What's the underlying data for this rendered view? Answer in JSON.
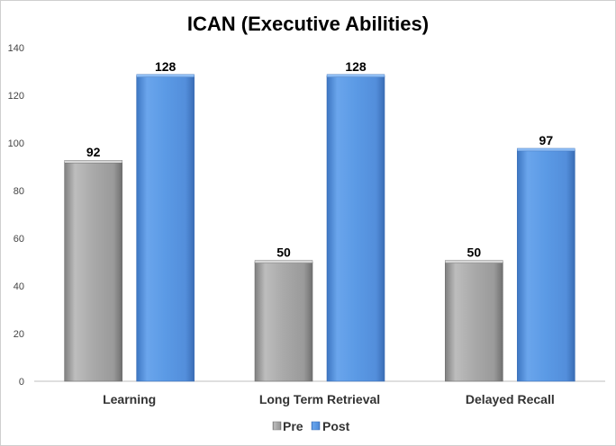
{
  "chart_data": {
    "type": "bar",
    "title": "ICAN (Executive Abilities)",
    "categories": [
      "Learning",
      "Long Term Retrieval",
      "Delayed Recall"
    ],
    "series": [
      {
        "name": "Pre",
        "values": [
          92,
          50,
          50
        ],
        "color": "#a6a6a6"
      },
      {
        "name": "Post",
        "values": [
          128,
          128,
          97
        ],
        "color": "#5b9ae5"
      }
    ],
    "yticks": [
      0,
      20,
      40,
      60,
      80,
      100,
      120,
      140
    ],
    "ylim": [
      0,
      140
    ],
    "grid": false,
    "legend": "bottom"
  }
}
